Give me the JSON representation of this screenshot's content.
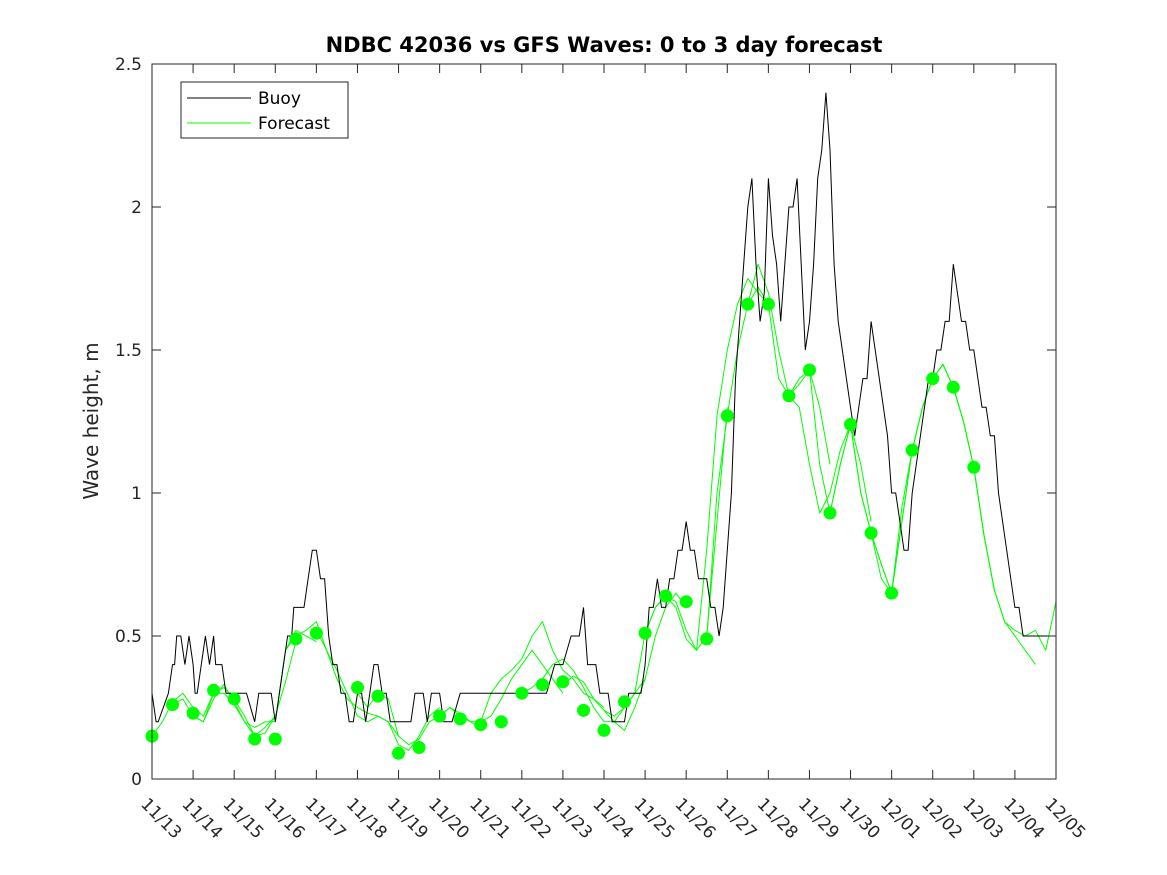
{
  "chart_data": {
    "type": "line",
    "title": "NDBC 42036 vs GFS Waves: 0 to 3 day forecast",
    "xlabel": "",
    "ylabel": "Wave height, m",
    "xlim": [
      0,
      22
    ],
    "ylim": [
      0,
      2.5
    ],
    "x_tick_labels": [
      "11/13",
      "11/14",
      "11/15",
      "11/16",
      "11/17",
      "11/18",
      "11/19",
      "11/20",
      "11/21",
      "11/22",
      "11/23",
      "11/24",
      "11/25",
      "11/26",
      "11/27",
      "11/28",
      "11/29",
      "11/30",
      "12/01",
      "12/02",
      "12/03",
      "12/04",
      "12/05"
    ],
    "y_ticks": [
      0,
      0.5,
      1,
      1.5,
      2,
      2.5
    ],
    "y_tick_labels": [
      "0",
      "0.5",
      "1",
      "1.5",
      "2",
      "2.5"
    ],
    "legend": {
      "position": "top-left",
      "entries": [
        "Buoy",
        "Forecast"
      ]
    },
    "colors": {
      "buoy": "#000000",
      "forecast": "#00ff00",
      "axes": "#262626"
    },
    "buoy": {
      "name": "Buoy",
      "x": [
        0,
        0.1,
        0.15,
        0.4,
        0.5,
        0.55,
        0.6,
        0.7,
        0.8,
        0.9,
        1.0,
        1.05,
        1.1,
        1.2,
        1.3,
        1.4,
        1.5,
        1.55,
        1.6,
        1.7,
        1.8,
        1.9,
        2.0,
        2.1,
        2.3,
        2.5,
        2.6,
        2.7,
        2.8,
        2.9,
        3.0,
        3.1,
        3.2,
        3.3,
        3.4,
        3.45,
        3.5,
        3.6,
        3.7,
        3.8,
        3.9,
        4.0,
        4.1,
        4.2,
        4.3,
        4.4,
        4.5,
        4.6,
        4.7,
        4.8,
        4.9,
        5.0,
        5.1,
        5.2,
        5.3,
        5.4,
        5.5,
        5.6,
        5.7,
        5.8,
        5.9,
        6.0,
        6.1,
        6.2,
        6.3,
        6.4,
        6.5,
        6.6,
        6.7,
        6.8,
        6.9,
        7.0,
        7.1,
        7.3,
        7.5,
        7.6,
        7.7,
        7.8,
        8.0,
        8.2,
        8.4,
        8.6,
        8.8,
        9.0,
        9.2,
        9.4,
        9.6,
        9.8,
        10.0,
        10.2,
        10.4,
        10.5,
        10.6,
        10.7,
        10.8,
        10.9,
        11.0,
        11.1,
        11.2,
        11.3,
        11.4,
        11.5,
        11.6,
        11.7,
        11.8,
        11.9,
        12.0,
        12.1,
        12.2,
        12.3,
        12.4,
        12.5,
        12.6,
        12.7,
        12.8,
        12.9,
        13.0,
        13.1,
        13.2,
        13.3,
        13.4,
        13.5,
        13.6,
        13.7,
        13.8,
        13.9,
        14.0,
        14.1,
        14.2,
        14.3,
        14.4,
        14.5,
        14.6,
        14.7,
        14.8,
        14.9,
        15.0,
        15.1,
        15.2,
        15.3,
        15.4,
        15.5,
        15.6,
        15.7,
        15.8,
        15.9,
        16.0,
        16.1,
        16.2,
        16.3,
        16.4,
        16.5,
        16.6,
        16.7,
        16.8,
        16.9,
        17.0,
        17.1,
        17.2,
        17.3,
        17.4,
        17.5,
        17.6,
        17.7,
        17.8,
        17.9,
        18.0,
        18.1,
        18.2,
        18.3,
        18.4,
        18.5,
        18.6,
        18.7,
        18.8,
        18.9,
        19.0,
        19.1,
        19.2,
        19.3,
        19.4,
        19.5,
        19.6,
        19.7,
        19.8,
        19.9,
        20.0,
        20.1,
        20.2,
        20.3,
        20.4,
        20.5,
        20.6,
        20.7,
        20.8,
        20.9,
        21.0,
        21.1,
        21.2,
        21.4,
        21.6,
        21.8,
        22.0
      ],
      "y": [
        0.3,
        0.2,
        0.2,
        0.3,
        0.4,
        0.4,
        0.5,
        0.5,
        0.4,
        0.5,
        0.4,
        0.3,
        0.3,
        0.4,
        0.5,
        0.4,
        0.5,
        0.4,
        0.4,
        0.4,
        0.3,
        0.3,
        0.3,
        0.3,
        0.3,
        0.2,
        0.3,
        0.3,
        0.3,
        0.3,
        0.2,
        0.3,
        0.4,
        0.5,
        0.5,
        0.6,
        0.6,
        0.6,
        0.6,
        0.7,
        0.8,
        0.8,
        0.7,
        0.7,
        0.5,
        0.4,
        0.4,
        0.3,
        0.3,
        0.2,
        0.2,
        0.3,
        0.3,
        0.2,
        0.3,
        0.4,
        0.4,
        0.3,
        0.3,
        0.2,
        0.2,
        0.2,
        0.2,
        0.2,
        0.2,
        0.3,
        0.3,
        0.3,
        0.2,
        0.3,
        0.3,
        0.3,
        0.2,
        0.2,
        0.3,
        0.3,
        0.3,
        0.3,
        0.3,
        0.3,
        0.3,
        0.3,
        0.3,
        0.3,
        0.3,
        0.3,
        0.3,
        0.4,
        0.4,
        0.5,
        0.5,
        0.6,
        0.4,
        0.4,
        0.4,
        0.3,
        0.3,
        0.3,
        0.2,
        0.2,
        0.2,
        0.2,
        0.3,
        0.3,
        0.3,
        0.3,
        0.4,
        0.6,
        0.6,
        0.7,
        0.6,
        0.6,
        0.7,
        0.7,
        0.8,
        0.8,
        0.9,
        0.8,
        0.8,
        0.7,
        0.7,
        0.7,
        0.6,
        0.6,
        0.5,
        0.6,
        0.8,
        1.0,
        1.4,
        1.6,
        1.8,
        2.0,
        2.1,
        1.8,
        1.6,
        1.7,
        2.1,
        1.9,
        1.8,
        1.6,
        1.8,
        2.0,
        2.0,
        2.1,
        1.8,
        1.5,
        1.6,
        1.8,
        2.1,
        2.2,
        2.4,
        2.2,
        1.8,
        1.6,
        1.5,
        1.4,
        1.3,
        1.2,
        1.3,
        1.4,
        1.4,
        1.6,
        1.5,
        1.4,
        1.3,
        1.2,
        1.0,
        1.0,
        0.9,
        0.8,
        0.8,
        1.0,
        1.1,
        1.2,
        1.3,
        1.4,
        1.4,
        1.5,
        1.5,
        1.6,
        1.6,
        1.8,
        1.7,
        1.6,
        1.6,
        1.5,
        1.5,
        1.4,
        1.3,
        1.3,
        1.2,
        1.2,
        1.0,
        0.9,
        0.8,
        0.7,
        0.6,
        0.6,
        0.5,
        0.5,
        0.5,
        0.5,
        0.5
      ]
    },
    "forecast_series": [
      {
        "name": "Forecast",
        "x": [
          0,
          0.25,
          0.5,
          0.75,
          1,
          1.25,
          1.5,
          1.75,
          2,
          2.25,
          2.5,
          2.75,
          3
        ],
        "y": [
          0.15,
          0.2,
          0.27,
          0.3,
          0.25,
          0.22,
          0.3,
          0.32,
          0.28,
          0.22,
          0.15,
          0.18,
          0.22
        ]
      },
      {
        "name": "Forecast",
        "x": [
          0.5,
          0.75,
          1,
          1.25,
          1.5,
          1.75,
          2,
          2.25,
          2.5,
          2.75,
          3,
          3.25,
          3.5
        ],
        "y": [
          0.26,
          0.28,
          0.22,
          0.2,
          0.3,
          0.3,
          0.26,
          0.2,
          0.15,
          0.16,
          0.22,
          0.34,
          0.48
        ]
      },
      {
        "name": "Forecast",
        "x": [
          1,
          1.25,
          1.5,
          1.75,
          2,
          2.25,
          2.5,
          2.75,
          3,
          3.25,
          3.5,
          3.75,
          4
        ],
        "y": [
          0.22,
          0.2,
          0.28,
          0.33,
          0.27,
          0.2,
          0.18,
          0.2,
          0.2,
          0.45,
          0.52,
          0.5,
          0.48
        ]
      },
      {
        "name": "Forecast",
        "x": [
          3,
          3.25,
          3.5,
          3.75,
          4,
          4.25,
          4.5,
          4.75,
          5,
          5.25,
          5.5,
          5.75,
          6
        ],
        "y": [
          0.2,
          0.45,
          0.5,
          0.52,
          0.55,
          0.45,
          0.38,
          0.3,
          0.22,
          0.2,
          0.22,
          0.2,
          0.15
        ]
      },
      {
        "name": "Forecast",
        "x": [
          4,
          4.25,
          4.5,
          4.75,
          5,
          5.25,
          5.5,
          5.75,
          6,
          6.25,
          6.5,
          6.75,
          7
        ],
        "y": [
          0.52,
          0.45,
          0.35,
          0.28,
          0.25,
          0.23,
          0.22,
          0.2,
          0.12,
          0.1,
          0.15,
          0.22,
          0.25
        ]
      },
      {
        "name": "Forecast",
        "x": [
          5,
          5.25,
          5.5,
          5.75,
          6,
          6.25,
          6.5,
          6.75,
          7,
          7.25,
          7.5,
          7.75,
          8
        ],
        "y": [
          0.3,
          0.25,
          0.3,
          0.28,
          0.15,
          0.12,
          0.14,
          0.2,
          0.22,
          0.25,
          0.22,
          0.2,
          0.18
        ]
      },
      {
        "name": "Forecast",
        "x": [
          7,
          7.25,
          7.5,
          7.75,
          8,
          8.25,
          8.5,
          8.75,
          9,
          9.25,
          9.5,
          9.75,
          10
        ],
        "y": [
          0.22,
          0.25,
          0.23,
          0.2,
          0.2,
          0.22,
          0.28,
          0.35,
          0.4,
          0.45,
          0.4,
          0.35,
          0.3
        ]
      },
      {
        "name": "Forecast",
        "x": [
          8,
          8.25,
          8.5,
          8.75,
          9,
          9.25,
          9.5,
          9.75,
          10,
          10.25,
          10.5,
          10.75,
          11
        ],
        "y": [
          0.2,
          0.3,
          0.35,
          0.38,
          0.42,
          0.5,
          0.55,
          0.45,
          0.38,
          0.35,
          0.3,
          0.28,
          0.25
        ]
      },
      {
        "name": "Forecast",
        "x": [
          9,
          9.25,
          9.5,
          9.75,
          10,
          10.25,
          10.5,
          10.75,
          11,
          11.25,
          11.5,
          11.75,
          12
        ],
        "y": [
          0.3,
          0.32,
          0.35,
          0.4,
          0.42,
          0.38,
          0.32,
          0.25,
          0.2,
          0.2,
          0.25,
          0.3,
          0.35
        ]
      },
      {
        "name": "Forecast",
        "x": [
          10,
          10.25,
          10.5,
          10.75,
          11,
          11.25,
          11.5,
          11.75,
          12,
          12.25,
          12.5,
          12.75,
          13
        ],
        "y": [
          0.33,
          0.36,
          0.34,
          0.28,
          0.24,
          0.2,
          0.17,
          0.25,
          0.35,
          0.5,
          0.6,
          0.65,
          0.6
        ]
      },
      {
        "name": "Forecast",
        "x": [
          11,
          11.25,
          11.5,
          11.75,
          12,
          12.25,
          12.5,
          12.75,
          13,
          13.25,
          13.5,
          13.75,
          14
        ],
        "y": [
          0.24,
          0.22,
          0.25,
          0.3,
          0.51,
          0.6,
          0.64,
          0.62,
          0.52,
          0.45,
          0.5,
          0.9,
          1.3
        ]
      },
      {
        "name": "Forecast",
        "x": [
          12,
          12.25,
          12.5,
          12.75,
          13,
          13.25,
          13.5,
          13.75,
          14,
          14.25,
          14.5,
          14.75,
          15
        ],
        "y": [
          0.51,
          0.6,
          0.64,
          0.6,
          0.49,
          0.45,
          0.8,
          1.27,
          1.5,
          1.66,
          1.75,
          1.7,
          1.66
        ]
      },
      {
        "name": "Forecast",
        "x": [
          13.5,
          13.75,
          14,
          14.25,
          14.5,
          14.75,
          15,
          15.25,
          15.5,
          15.75,
          16,
          16.25,
          16.5
        ],
        "y": [
          0.49,
          1.0,
          1.27,
          1.5,
          1.66,
          1.72,
          1.66,
          1.4,
          1.34,
          1.38,
          1.43,
          1.3,
          1.1
        ]
      },
      {
        "name": "Forecast",
        "x": [
          14.5,
          14.75,
          15,
          15.25,
          15.5,
          15.75,
          16,
          16.25,
          16.5,
          16.75,
          17,
          17.25,
          17.5
        ],
        "y": [
          1.66,
          1.8,
          1.7,
          1.5,
          1.34,
          1.3,
          1.1,
          0.93,
          1.0,
          1.15,
          1.24,
          1.1,
          0.9
        ]
      },
      {
        "name": "Forecast",
        "x": [
          15.5,
          15.75,
          16,
          16.25,
          16.5,
          16.75,
          17,
          17.25,
          17.5,
          17.75,
          18,
          18.25,
          18.5
        ],
        "y": [
          1.34,
          1.4,
          1.43,
          1.1,
          0.93,
          1.1,
          1.24,
          1.0,
          0.86,
          0.75,
          0.65,
          0.9,
          1.15
        ]
      },
      {
        "name": "Forecast",
        "x": [
          16.5,
          16.75,
          17,
          17.25,
          17.5,
          17.75,
          18,
          18.25,
          18.5,
          18.75,
          19,
          19.25,
          19.5
        ],
        "y": [
          0.93,
          1.1,
          1.24,
          1.0,
          0.86,
          0.7,
          0.65,
          0.9,
          1.15,
          1.3,
          1.4,
          1.45,
          1.37
        ]
      },
      {
        "name": "Forecast",
        "x": [
          17.5,
          17.75,
          18,
          18.25,
          18.5,
          18.75,
          19,
          19.25,
          19.5,
          19.75,
          20,
          20.25,
          20.5
        ],
        "y": [
          0.86,
          0.75,
          0.65,
          0.95,
          1.15,
          1.3,
          1.4,
          1.45,
          1.37,
          1.25,
          1.09,
          0.85,
          0.66
        ]
      },
      {
        "name": "Forecast",
        "x": [
          18.5,
          18.75,
          19,
          19.25,
          19.5,
          19.75,
          20,
          20.25,
          20.5,
          20.75,
          21,
          21.25,
          21.5
        ],
        "y": [
          1.15,
          1.3,
          1.4,
          1.45,
          1.37,
          1.25,
          1.09,
          0.85,
          0.66,
          0.55,
          0.5,
          0.45,
          0.4
        ]
      },
      {
        "name": "Forecast",
        "x": [
          19.5,
          19.75,
          20,
          20.25,
          20.5,
          20.75,
          21,
          21.25,
          21.5,
          21.75,
          22
        ],
        "y": [
          1.37,
          1.25,
          1.09,
          0.85,
          0.66,
          0.55,
          0.52,
          0.5,
          0.52,
          0.45,
          0.62
        ]
      }
    ],
    "forecast_markers": {
      "name": "Forecast day-0 points",
      "x": [
        0,
        0.5,
        1,
        1.5,
        2,
        2.5,
        3,
        3.5,
        4,
        5,
        5.5,
        6,
        6.5,
        7,
        7.5,
        8,
        8.5,
        9,
        9.5,
        10,
        10.5,
        11,
        11.5,
        12,
        12.5,
        13,
        13.5,
        14,
        14.5,
        15,
        15.5,
        16,
        16.5,
        17,
        17.5,
        18,
        18.5,
        19,
        19.5,
        20
      ],
      "y": [
        0.15,
        0.26,
        0.23,
        0.31,
        0.28,
        0.14,
        0.14,
        0.49,
        0.51,
        0.32,
        0.29,
        0.09,
        0.11,
        0.22,
        0.21,
        0.19,
        0.2,
        0.3,
        0.33,
        0.34,
        0.24,
        0.17,
        0.27,
        0.51,
        0.64,
        0.62,
        0.49,
        1.27,
        1.66,
        1.66,
        1.34,
        1.43,
        0.93,
        1.24,
        0.86,
        0.65,
        1.15,
        1.4,
        1.37,
        1.09
      ]
    }
  }
}
